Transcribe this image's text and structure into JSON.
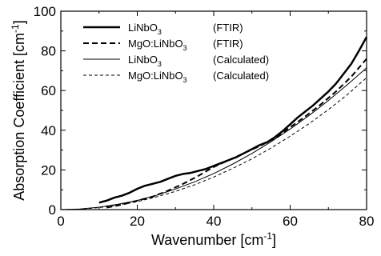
{
  "chart_data": {
    "type": "line",
    "xlabel": "Wavenumber [cm",
    "xlabel_sup": "-1",
    "xlabel_tail": "]",
    "ylabel": "Absorption Coefficient [cm",
    "ylabel_sup": "-1",
    "ylabel_tail": "]",
    "xlim": [
      0,
      80
    ],
    "ylim": [
      0,
      100
    ],
    "xticks": [
      0,
      20,
      40,
      60,
      80
    ],
    "yticks": [
      0,
      20,
      40,
      60,
      80,
      100
    ],
    "grid": false,
    "legend_position": "top-left",
    "series": [
      {
        "legend_main": "LiNbO",
        "legend_sub": "3",
        "legend_note": "(FTIR)",
        "style": "solid-thick",
        "x": [
          10,
          12,
          14,
          16,
          18,
          20,
          22,
          24,
          26,
          28,
          30,
          32,
          34,
          36,
          38,
          40,
          42,
          44,
          46,
          48,
          50,
          52,
          54,
          56,
          58,
          60,
          62,
          64,
          66,
          68,
          70,
          72,
          74,
          76,
          78,
          80
        ],
        "y": [
          3.5,
          4.5,
          6,
          7,
          8.5,
          10.5,
          12,
          13,
          14,
          15.5,
          17,
          18,
          18.5,
          19.5,
          20.5,
          22,
          23.5,
          25,
          26.5,
          28.5,
          30.5,
          32.5,
          34,
          36.5,
          39.5,
          43,
          46.5,
          49.5,
          52.5,
          56,
          59.5,
          63.5,
          68.5,
          73.5,
          80,
          87
        ]
      },
      {
        "legend_main": "MgO:LiNbO",
        "legend_sub": "3",
        "legend_note": "(FTIR)",
        "style": "dashed-thick",
        "x": [
          12,
          16,
          20,
          24,
          28,
          32,
          36,
          40,
          44,
          48,
          52,
          56,
          60,
          64,
          68,
          72,
          76,
          80
        ],
        "y": [
          1,
          2.5,
          4.5,
          6.5,
          9.5,
          13,
          17,
          21.5,
          25,
          28.5,
          32,
          36,
          41.5,
          47,
          53,
          59.5,
          67,
          76
        ]
      },
      {
        "legend_main": "LiNbO",
        "legend_sub": "3",
        "legend_note": "(Calculated)",
        "style": "solid-thin",
        "x": [
          0,
          5,
          10,
          15,
          20,
          25,
          30,
          35,
          40,
          45,
          50,
          55,
          60,
          65,
          70,
          75,
          80
        ],
        "y": [
          0,
          0.3,
          1.2,
          2.7,
          4.6,
          7.2,
          10.4,
          14,
          18.2,
          23,
          28.3,
          34.2,
          40.6,
          47.5,
          55,
          63,
          71.5
        ]
      },
      {
        "legend_main": "MgO:LiNbO",
        "legend_sub": "3",
        "legend_note": "(Calculated)",
        "style": "dashed-thin",
        "x": [
          0,
          5,
          10,
          15,
          20,
          25,
          30,
          35,
          40,
          45,
          50,
          55,
          60,
          65,
          70,
          75,
          80
        ],
        "y": [
          0,
          0.2,
          1,
          2.3,
          4,
          6.4,
          9.2,
          12.5,
          16.4,
          20.8,
          25.6,
          31,
          37,
          43.4,
          50.4,
          58,
          66.5
        ]
      }
    ]
  }
}
